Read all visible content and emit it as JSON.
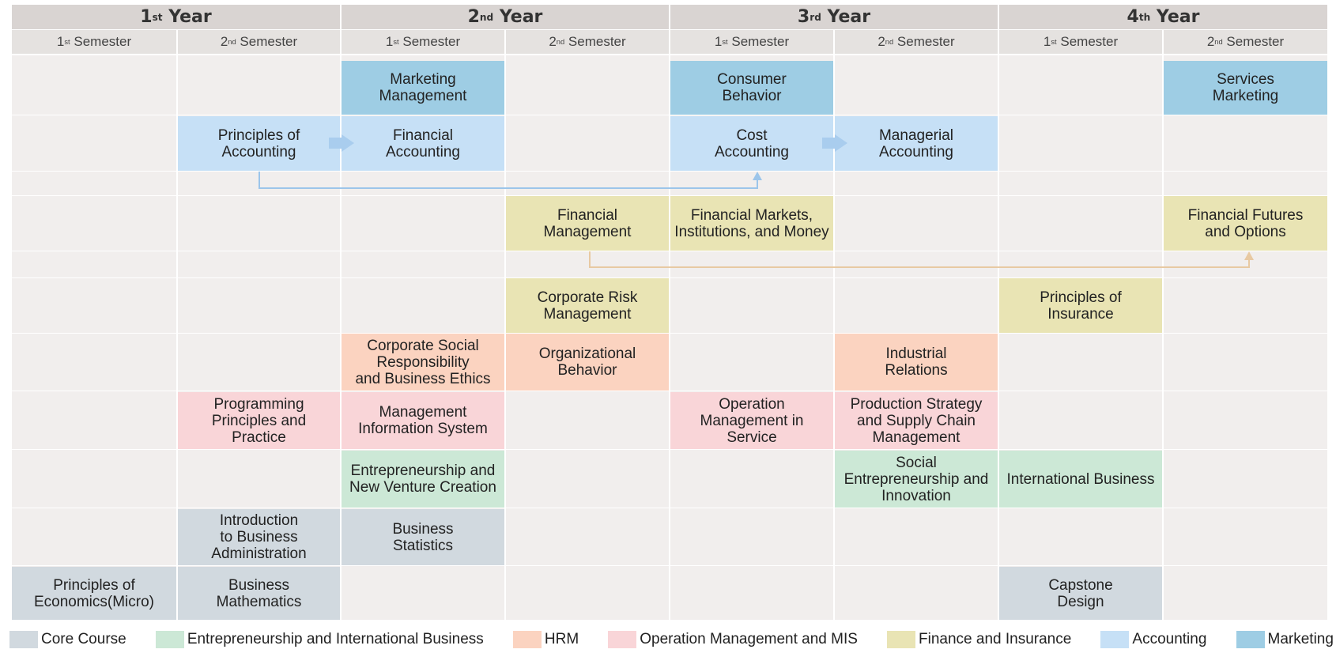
{
  "years": [
    {
      "num": "1",
      "suffix": "st",
      "label": "Year"
    },
    {
      "num": "2",
      "suffix": "nd",
      "label": "Year"
    },
    {
      "num": "3",
      "suffix": "rd",
      "label": "Year"
    },
    {
      "num": "4",
      "suffix": "th",
      "label": "Year"
    }
  ],
  "semesters": [
    {
      "num": "1",
      "suffix": "st",
      "label": "Semester"
    },
    {
      "num": "2",
      "suffix": "nd",
      "label": "Semester"
    },
    {
      "num": "1",
      "suffix": "st",
      "label": "Semester"
    },
    {
      "num": "2",
      "suffix": "nd",
      "label": "Semester"
    },
    {
      "num": "1",
      "suffix": "st",
      "label": "Semester"
    },
    {
      "num": "2",
      "suffix": "nd",
      "label": "Semester"
    },
    {
      "num": "1",
      "suffix": "st",
      "label": "Semester"
    },
    {
      "num": "2",
      "suffix": "nd",
      "label": "Semester"
    }
  ],
  "courses": [
    {
      "id": "mkt-mgmt",
      "title": "Marketing\nManagement",
      "category": "mkt"
    },
    {
      "id": "consumer",
      "title": "Consumer\nBehavior",
      "category": "mkt"
    },
    {
      "id": "services-mkt",
      "title": "Services\nMarketing",
      "category": "mkt"
    },
    {
      "id": "prin-acc",
      "title": "Principles of\nAccounting",
      "category": "acc"
    },
    {
      "id": "fin-acc",
      "title": "Financial\nAccounting",
      "category": "acc"
    },
    {
      "id": "cost-acc",
      "title": "Cost\nAccounting",
      "category": "acc"
    },
    {
      "id": "mgr-acc",
      "title": "Managerial\nAccounting",
      "category": "acc"
    },
    {
      "id": "fin-mgmt",
      "title": "Financial\nManagement",
      "category": "fin"
    },
    {
      "id": "fin-markets",
      "title": "Financial Markets,\nInstitutions, and Money",
      "category": "fin"
    },
    {
      "id": "fin-futures",
      "title": "Financial Futures\nand Options",
      "category": "fin"
    },
    {
      "id": "corp-risk",
      "title": "Corporate Risk\nManagement",
      "category": "fin"
    },
    {
      "id": "prin-ins",
      "title": "Principles of\nInsurance",
      "category": "fin"
    },
    {
      "id": "csr",
      "title": "Corporate Social\nResponsibility\nand Business Ethics",
      "category": "hrm"
    },
    {
      "id": "org-beh",
      "title": "Organizational\nBehavior",
      "category": "hrm"
    },
    {
      "id": "ind-rel",
      "title": "Industrial\nRelations",
      "category": "hrm"
    },
    {
      "id": "prog",
      "title": "Programming\nPrinciples and\nPractice",
      "category": "op"
    },
    {
      "id": "mis",
      "title": "Management\nInformation System",
      "category": "op"
    },
    {
      "id": "op-svc",
      "title": "Operation\nManagement in\nService",
      "category": "op"
    },
    {
      "id": "prod-strat",
      "title": "Production Strategy\nand Supply Chain\nManagement",
      "category": "op"
    },
    {
      "id": "entre",
      "title": "Entrepreneurship and\nNew Venture Creation",
      "category": "ent"
    },
    {
      "id": "social-entre",
      "title": "Social\nEntrepreneurship and\nInnovation",
      "category": "ent"
    },
    {
      "id": "intl-bus",
      "title": "International Business",
      "category": "ent"
    },
    {
      "id": "intro-ba",
      "title": "Introduction\nto Business\nAdministration",
      "category": "core"
    },
    {
      "id": "bus-stat",
      "title": "Business\nStatistics",
      "category": "core"
    },
    {
      "id": "prin-econ",
      "title": "Principles of\nEconomics(Micro)",
      "category": "core"
    },
    {
      "id": "bus-math",
      "title": "Business\nMathematics",
      "category": "core"
    },
    {
      "id": "capstone",
      "title": "Capstone\nDesign",
      "category": "core"
    }
  ],
  "links": [
    {
      "from": "prin-acc",
      "to": "fin-acc",
      "style": "block-arrow"
    },
    {
      "from": "cost-acc",
      "to": "mgr-acc",
      "style": "block-arrow"
    },
    {
      "from": "prin-acc",
      "to": "cost-acc",
      "style": "elbow"
    },
    {
      "from": "fin-mgmt",
      "to": "fin-futures",
      "style": "elbow"
    }
  ],
  "legend": [
    {
      "key": "core",
      "label": "Core Course",
      "color": "#d1d9df"
    },
    {
      "key": "ent",
      "label": "Entrepreneurship and International Business",
      "color": "#cce8d6"
    },
    {
      "key": "hrm",
      "label": "HRM",
      "color": "#fbd3c0"
    },
    {
      "key": "op",
      "label": "Operation Management and MIS",
      "color": "#f9d5d8"
    },
    {
      "key": "fin",
      "label": "Finance and Insurance",
      "color": "#e9e4b4"
    },
    {
      "key": "acc",
      "label": "Accounting",
      "color": "#c6e0f6"
    },
    {
      "key": "mkt",
      "label": "Marketing",
      "color": "#9ecde4"
    }
  ]
}
